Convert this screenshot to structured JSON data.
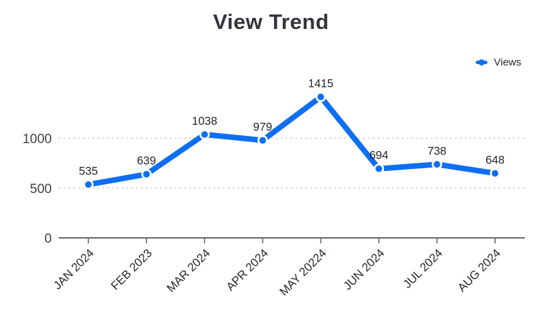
{
  "title": "View Trend",
  "legend": {
    "label": "Views",
    "color": "#0e6ff2"
  },
  "chart_data": {
    "type": "line",
    "title": "View Trend",
    "categories": [
      "JAN 2024",
      "FEB 2023",
      "MAR 2024",
      "APR 2024",
      "MAY 20224",
      "JUN 2024",
      "JUL 2024",
      "AUG 2024"
    ],
    "series": [
      {
        "name": "Views",
        "values": [
          535,
          639,
          1038,
          979,
          1415,
          694,
          738,
          648
        ]
      }
    ],
    "data_labels": [
      535,
      639,
      1038,
      979,
      1415,
      694,
      738,
      648
    ],
    "xlabel": "",
    "ylabel": "",
    "ylim": [
      0,
      1500
    ],
    "yticks": [
      0,
      500,
      1000
    ],
    "grid": "horizontal-dashed",
    "gridline_color": "#c9c9ce",
    "axis_color": "#66696e",
    "line_color": "#0e6ff2",
    "marker": "circle-blue-with-white-ring",
    "legend_position": "top-right",
    "legend_entries": [
      "Views"
    ]
  }
}
